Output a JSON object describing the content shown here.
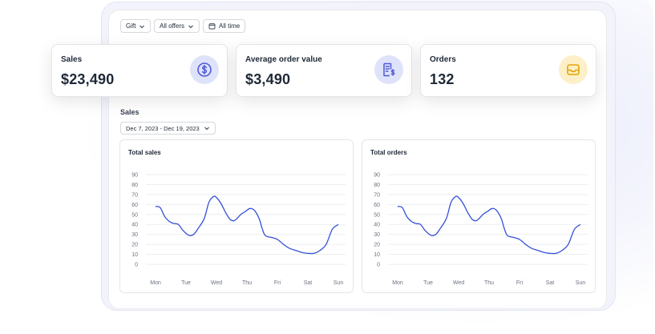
{
  "filters": {
    "product": "Gift",
    "offers": "All offers",
    "period": "All time"
  },
  "cards": [
    {
      "label": "Sales",
      "value": "$23,490",
      "icon": "dollar-circle-icon",
      "icon_color": "#4f5bd5",
      "icon_bg": "#dfe3fa"
    },
    {
      "label": "Average order value",
      "value": "$3,490",
      "icon": "receipt-dollar-icon",
      "icon_color": "#4f5bd5",
      "icon_bg": "#dfe3fa"
    },
    {
      "label": "Orders",
      "value": "132",
      "icon": "inbox-tray-icon",
      "icon_color": "#e2a400",
      "icon_bg": "#fdf0c8"
    }
  ],
  "section": {
    "title": "Sales",
    "date_range": "Dec 7, 2023 - Dec 19, 2023"
  },
  "chart_data": [
    {
      "type": "line",
      "title": "Total sales",
      "x": [
        "Mon",
        "Tue",
        "Wed",
        "Thu",
        "Fri",
        "Sat",
        "Sun"
      ],
      "y_ticks": [
        "90",
        "80",
        "70",
        "60",
        "50",
        "40",
        "30",
        "20",
        "10",
        "0"
      ],
      "ylim": [
        0,
        90
      ],
      "grid": true,
      "line_color": "#3550d8",
      "series": [
        {
          "x": [
            0,
            0.15,
            0.3,
            0.45,
            0.6,
            0.75,
            0.9,
            1.1,
            1.25,
            1.4,
            1.6,
            1.75,
            1.9,
            2.0,
            2.15,
            2.3,
            2.45,
            2.6,
            2.8,
            2.95,
            3.1,
            3.25,
            3.4,
            3.5,
            3.6,
            3.8,
            4.0,
            4.2,
            4.4,
            4.6,
            4.8,
            5.0,
            5.2,
            5.4,
            5.6,
            5.8,
            6.0
          ],
          "y": [
            58,
            57,
            48,
            43,
            41,
            40,
            34,
            29,
            30,
            36,
            46,
            62,
            68,
            67,
            61,
            52,
            45,
            44,
            50,
            53,
            56,
            54,
            46,
            36,
            29,
            27,
            25,
            20,
            16,
            14,
            12,
            11,
            11,
            14,
            20,
            35,
            40
          ]
        }
      ]
    },
    {
      "type": "line",
      "title": "Total orders",
      "x": [
        "Mon",
        "Tue",
        "Wed",
        "Thu",
        "Fri",
        "Sat",
        "Sun"
      ],
      "y_ticks": [
        "90",
        "80",
        "70",
        "60",
        "50",
        "40",
        "30",
        "20",
        "10",
        "0"
      ],
      "ylim": [
        0,
        90
      ],
      "grid": true,
      "line_color": "#3550d8",
      "series": [
        {
          "x": [
            0,
            0.15,
            0.3,
            0.45,
            0.6,
            0.75,
            0.9,
            1.1,
            1.25,
            1.4,
            1.6,
            1.75,
            1.9,
            2.0,
            2.15,
            2.3,
            2.45,
            2.6,
            2.8,
            2.95,
            3.1,
            3.25,
            3.4,
            3.5,
            3.6,
            3.8,
            4.0,
            4.2,
            4.4,
            4.6,
            4.8,
            5.0,
            5.2,
            5.4,
            5.6,
            5.8,
            6.0
          ],
          "y": [
            58,
            57,
            48,
            43,
            41,
            40,
            34,
            29,
            30,
            36,
            46,
            62,
            68,
            67,
            61,
            52,
            45,
            44,
            50,
            53,
            56,
            54,
            46,
            36,
            29,
            27,
            25,
            20,
            16,
            14,
            12,
            11,
            11,
            14,
            20,
            35,
            40
          ]
        }
      ]
    }
  ]
}
